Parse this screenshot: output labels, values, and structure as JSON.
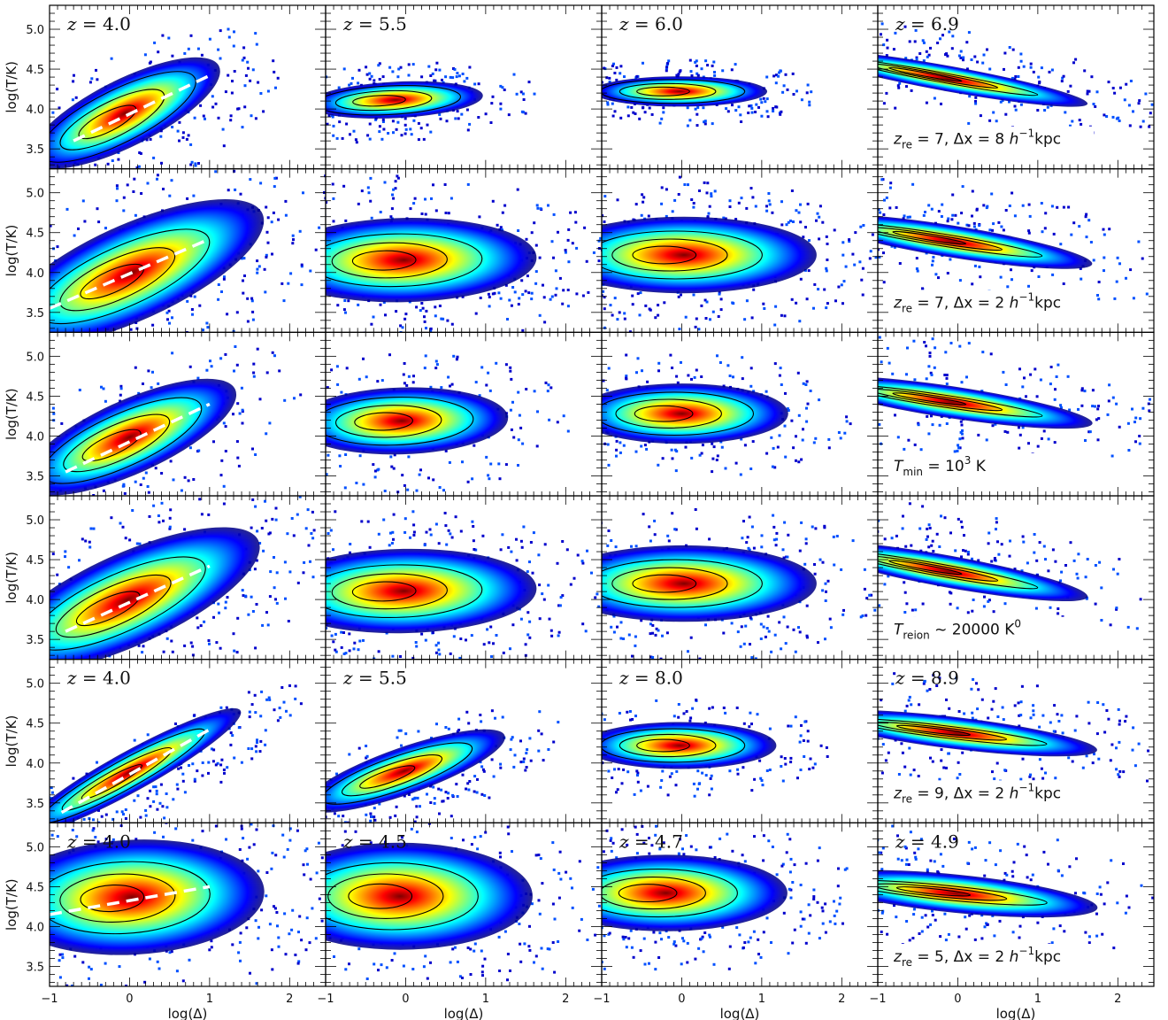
{
  "chart_data": {
    "type": "heatmap",
    "description_layout": "6 rows x 4 columns grid of temperature-density phase diagrams",
    "xlabel": "log(Δ)",
    "ylabel": "log(T/K)",
    "xlim": [
      -1.0,
      2.45
    ],
    "ylim": [
      3.25,
      5.3
    ],
    "xticks": [
      -1,
      0,
      1,
      2
    ],
    "yticks": [
      3.5,
      4.0,
      4.5,
      5.0
    ],
    "colormap": [
      "#00007f",
      "#0000ff",
      "#007fff",
      "#00ffff",
      "#7fff7f",
      "#ffff00",
      "#ff7f00",
      "#ff0000",
      "#7f0000"
    ],
    "contour_color": "#000000",
    "fit_line_color": "#ffffff",
    "rows": [
      {
        "note": "z_re = 7, Δx = 8 h⁻¹kpc",
        "note_display": {
          "pre": "z",
          "sub": "re",
          "mid": " = 7, Δx = 8 ",
          "h": "h",
          "sup": "−1",
          "post": "kpc"
        },
        "panels": [
          {
            "z_label": "z = 4.0",
            "z_display": "= 4.0",
            "peak": [
              -0.35,
              3.8
            ],
            "width": [
              0.6,
              0.22
            ],
            "tilt": 0.5,
            "spread": "narrow",
            "fit_line": {
              "x": [
                -0.7,
                1.0
              ],
              "y": [
                3.6,
                4.42
              ]
            }
          },
          {
            "z_label": "z = 5.5",
            "z_display": "= 5.5",
            "peak": [
              -0.4,
              4.1
            ],
            "width": [
              0.5,
              0.12
            ],
            "tilt": 0.05,
            "spread": "narrow"
          },
          {
            "z_label": "z = 6.0",
            "z_display": "= 6.0",
            "peak": [
              -0.3,
              4.22
            ],
            "width": [
              0.5,
              0.1
            ],
            "tilt": 0.0,
            "spread": "narrow"
          },
          {
            "z_label": "z = 6.9",
            "z_display": "= 6.9",
            "peak": [
              -0.5,
              4.45
            ],
            "width": [
              0.7,
              0.04
            ],
            "tilt": -0.18,
            "spread": "thin"
          }
        ]
      },
      {
        "note": "z_re = 7, Δx = 2 h⁻¹kpc",
        "note_display": {
          "pre": "z",
          "sub": "re",
          "mid": " = 7, Δx = 2 ",
          "h": "h",
          "sup": "−1",
          "post": "kpc"
        },
        "panels": [
          {
            "z_label": "",
            "z_display": "",
            "peak": [
              -0.3,
              3.85
            ],
            "width": [
              0.65,
              0.25
            ],
            "tilt": 0.45,
            "spread": "wide",
            "fit_line": {
              "x": [
                -1.0,
                1.0
              ],
              "y": [
                3.55,
                4.42
              ]
            }
          },
          {
            "z_label": "",
            "z_display": "",
            "peak": [
              -0.35,
              4.15
            ],
            "width": [
              0.6,
              0.22
            ],
            "tilt": 0.02,
            "spread": "wide"
          },
          {
            "z_label": "",
            "z_display": "",
            "peak": [
              -0.3,
              4.22
            ],
            "width": [
              0.6,
              0.2
            ],
            "tilt": 0.0,
            "spread": "wide"
          },
          {
            "z_label": "",
            "z_display": "",
            "peak": [
              -0.45,
              4.45
            ],
            "width": [
              0.7,
              0.05
            ],
            "tilt": -0.16,
            "spread": "thin"
          }
        ]
      },
      {
        "note": "T_min = 10³ K",
        "note_display": {
          "pre": "T",
          "sub": "min",
          "mid": " = 10",
          "h": "",
          "sup": "3",
          "post": " K"
        },
        "panels": [
          {
            "z_label": "",
            "z_display": "",
            "peak": [
              -0.3,
              3.85
            ],
            "width": [
              0.6,
              0.22
            ],
            "tilt": 0.45,
            "spread": "medium",
            "fit_line": {
              "x": [
                -0.8,
                1.0
              ],
              "y": [
                3.55,
                4.4
              ]
            }
          },
          {
            "z_label": "",
            "z_display": "",
            "peak": [
              -0.35,
              4.18
            ],
            "width": [
              0.55,
              0.2
            ],
            "tilt": 0.03,
            "spread": "medium"
          },
          {
            "z_label": "",
            "z_display": "",
            "peak": [
              -0.3,
              4.28
            ],
            "width": [
              0.55,
              0.18
            ],
            "tilt": 0.0,
            "spread": "medium"
          },
          {
            "z_label": "",
            "z_display": "",
            "peak": [
              -0.45,
              4.48
            ],
            "width": [
              0.7,
              0.05
            ],
            "tilt": -0.15,
            "spread": "thin"
          }
        ]
      },
      {
        "note": "T⁰_reion ~ 20000 K",
        "note_display": {
          "pre": "T",
          "sub": "reion",
          "mid": " ~ 20000 K",
          "h": "",
          "sup": "0",
          "post": ""
        },
        "panels": [
          {
            "z_label": "",
            "z_display": "",
            "peak": [
              -0.35,
              3.85
            ],
            "width": [
              0.65,
              0.24
            ],
            "tilt": 0.45,
            "spread": "wide",
            "fit_line": {
              "x": [
                -0.8,
                1.0
              ],
              "y": [
                3.6,
                4.42
              ]
            }
          },
          {
            "z_label": "",
            "z_display": "",
            "peak": [
              -0.35,
              4.1
            ],
            "width": [
              0.6,
              0.22
            ],
            "tilt": 0.02,
            "spread": "wide"
          },
          {
            "z_label": "",
            "z_display": "",
            "peak": [
              -0.3,
              4.2
            ],
            "width": [
              0.6,
              0.2
            ],
            "tilt": 0.0,
            "spread": "wide"
          },
          {
            "z_label": "",
            "z_display": "",
            "peak": [
              -0.5,
              4.42
            ],
            "width": [
              0.7,
              0.05
            ],
            "tilt": -0.18,
            "spread": "thin"
          }
        ]
      },
      {
        "note": "z_re = 9, Δx = 2 h⁻¹kpc",
        "note_display": {
          "pre": "z",
          "sub": "re",
          "mid": " = 9, Δx = 2 ",
          "h": "h",
          "sup": "−1",
          "post": "kpc"
        },
        "panels": [
          {
            "z_label": "z = 4.0",
            "z_display": "= 4.0",
            "peak": [
              -0.3,
              3.72
            ],
            "width": [
              0.65,
              0.12
            ],
            "tilt": 0.55,
            "spread": "medium",
            "fit_line": {
              "x": [
                -0.85,
                1.0
              ],
              "y": [
                3.38,
                4.42
              ]
            }
          },
          {
            "z_label": "z = 5.5",
            "z_display": "= 5.5",
            "peak": [
              -0.3,
              3.8
            ],
            "width": [
              0.55,
              0.14
            ],
            "tilt": 0.35,
            "spread": "medium"
          },
          {
            "z_label": "z = 8.0",
            "z_display": "= 8.0",
            "peak": [
              -0.3,
              4.22
            ],
            "width": [
              0.5,
              0.14
            ],
            "tilt": 0.0,
            "spread": "medium"
          },
          {
            "z_label": "z = 8.9",
            "z_display": "= 8.9",
            "peak": [
              -0.4,
              4.42
            ],
            "width": [
              0.7,
              0.05
            ],
            "tilt": -0.12,
            "spread": "thin"
          }
        ]
      },
      {
        "note": "z_re = 5, Δx = 2 h⁻¹kpc",
        "note_display": {
          "pre": "z",
          "sub": "re",
          "mid": " = 5, Δx = 2 ",
          "h": "h",
          "sup": "−1",
          "post": "kpc"
        },
        "panels": [
          {
            "z_label": "z = 4.0",
            "z_display": "= 4.0",
            "peak": [
              -0.3,
              4.35
            ],
            "width": [
              0.6,
              0.3
            ],
            "tilt": 0.05,
            "spread": "wide",
            "fit_line": {
              "x": [
                -1.0,
                1.0
              ],
              "y": [
                4.15,
                4.5
              ]
            }
          },
          {
            "z_label": "z = 4.5",
            "z_display": "= 4.5",
            "peak": [
              -0.4,
              4.38
            ],
            "width": [
              0.6,
              0.28
            ],
            "tilt": 0.0,
            "spread": "wide"
          },
          {
            "z_label": "z = 4.7",
            "z_display": "= 4.7",
            "peak": [
              -0.5,
              4.42
            ],
            "width": [
              0.55,
              0.2
            ],
            "tilt": 0.0,
            "spread": "wide"
          },
          {
            "z_label": "z = 4.9",
            "z_display": "= 4.9",
            "peak": [
              -0.4,
              4.45
            ],
            "width": [
              0.7,
              0.06
            ],
            "tilt": -0.1,
            "spread": "thin"
          }
        ]
      }
    ]
  }
}
